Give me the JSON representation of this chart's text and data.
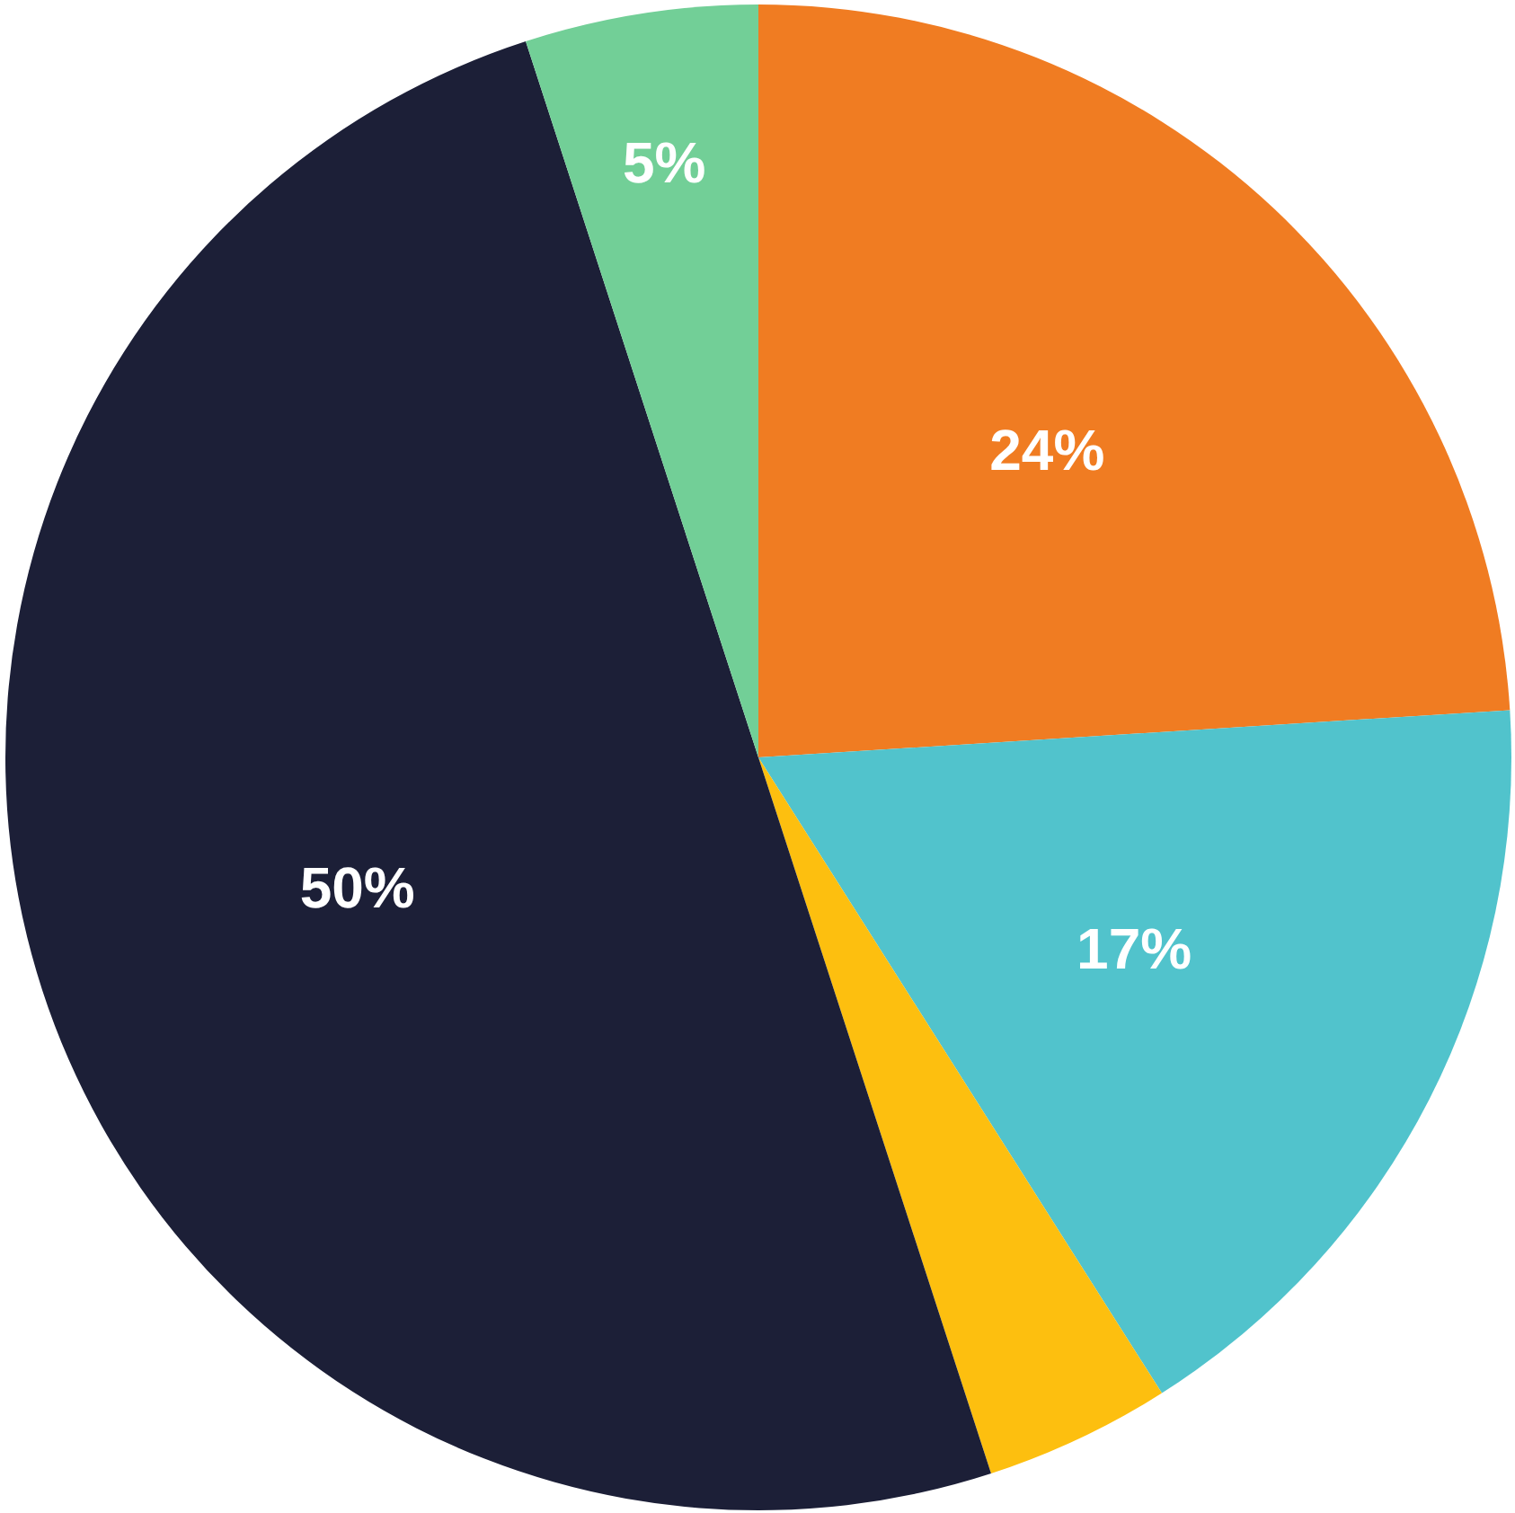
{
  "chart_data": {
    "type": "pie",
    "categories": [
      null,
      null,
      null,
      null,
      null
    ],
    "values": [
      24,
      17,
      4,
      50,
      5
    ],
    "colors": [
      "#f07c22",
      "#51c3cc",
      "#fdbf0f",
      "#1c1f37",
      "#72cf97"
    ],
    "value_labels": [
      "24%",
      "17%",
      null,
      "50%",
      "5%"
    ]
  }
}
